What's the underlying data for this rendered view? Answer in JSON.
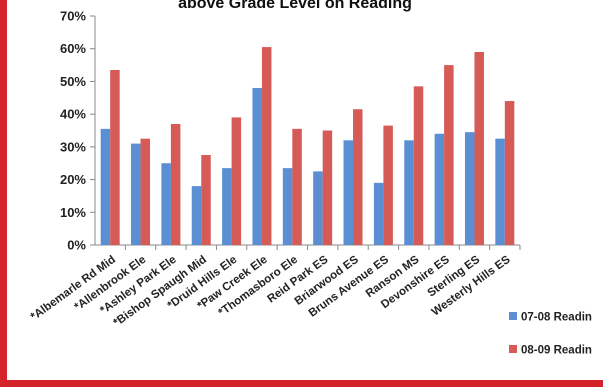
{
  "chart_data": {
    "type": "bar",
    "title": "above Grade Level on Reading",
    "xlabel": "",
    "ylabel": "",
    "ylim": [
      0,
      70
    ],
    "y_ticks": [
      "0%",
      "10%",
      "20%",
      "30%",
      "40%",
      "50%",
      "60%",
      "70%"
    ],
    "y_tick_values": [
      0,
      10,
      20,
      30,
      40,
      50,
      60,
      70
    ],
    "grid": false,
    "legend_position": "right",
    "categories": [
      "*Albemarle Rd Mid",
      "*Allenbrook Ele",
      "*Ashley Park Ele",
      "*Bishop Spaugh Mid",
      "*Druid Hills Ele",
      "*Paw Creek Ele",
      "*Thomasboro Ele",
      "Reid Park ES",
      "Briarwood ES",
      "Bruns Avenue ES",
      "Ranson MS",
      "Devonshire ES",
      "Sterling ES",
      "Westerly Hills ES"
    ],
    "series": [
      {
        "name": "07-08 Readin",
        "color": "#5b8fd4",
        "values": [
          35.5,
          31,
          25,
          18,
          23.5,
          48,
          23.5,
          22.5,
          32,
          19,
          32,
          34,
          34.5,
          32.5
        ]
      },
      {
        "name": "08-09 Readin",
        "color": "#d65b57",
        "values": [
          53.5,
          32.5,
          37,
          27.5,
          39,
          60.5,
          35.5,
          35,
          41.5,
          36.5,
          48.5,
          55,
          59,
          44
        ]
      }
    ]
  }
}
